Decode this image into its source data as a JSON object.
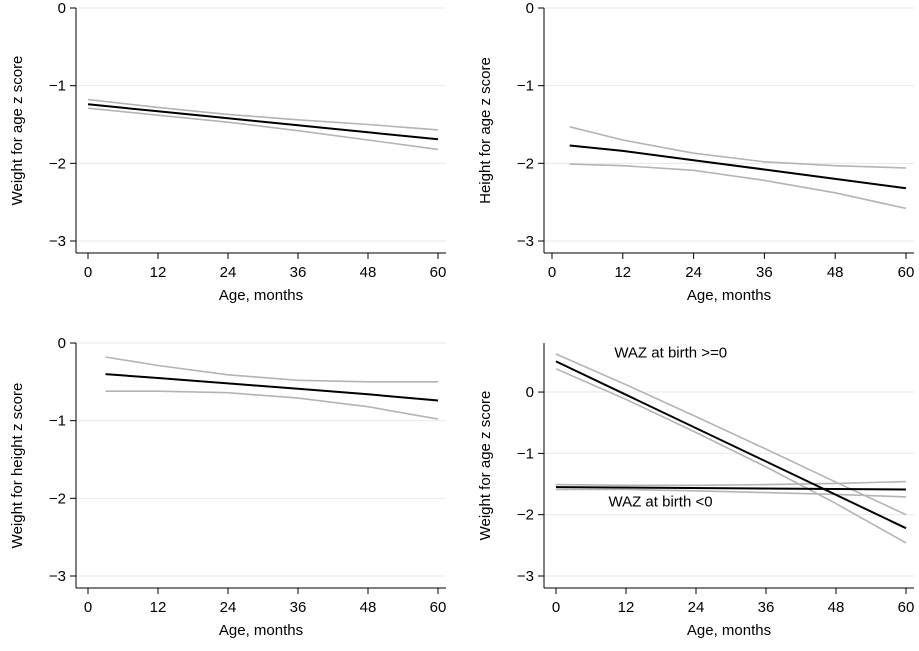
{
  "chart_data": [
    {
      "type": "line",
      "xlabel": "Age, months",
      "ylabel": "Weight for age z score",
      "xlim": [
        0,
        60
      ],
      "ylim": [
        -3,
        0
      ],
      "xticks": [
        0,
        12,
        24,
        36,
        48,
        60
      ],
      "yticks": [
        -3,
        -2,
        -1,
        0
      ],
      "ytick_labels": [
        "−3",
        "−2",
        "−1",
        "0"
      ],
      "grid": true,
      "series": [
        {
          "role": "estimate",
          "color": "#000000",
          "x": [
            0,
            12,
            24,
            36,
            48,
            60
          ],
          "y": [
            -1.24,
            -1.33,
            -1.42,
            -1.51,
            -1.6,
            -1.69
          ]
        },
        {
          "role": "ci-upper",
          "color": "#b4b4b4",
          "x": [
            0,
            12,
            24,
            36,
            48,
            60
          ],
          "y": [
            -1.18,
            -1.28,
            -1.37,
            -1.44,
            -1.5,
            -1.57
          ]
        },
        {
          "role": "ci-lower",
          "color": "#b4b4b4",
          "x": [
            0,
            12,
            24,
            36,
            48,
            60
          ],
          "y": [
            -1.29,
            -1.38,
            -1.47,
            -1.58,
            -1.7,
            -1.82
          ]
        }
      ],
      "annotations": []
    },
    {
      "type": "line",
      "xlabel": "Age, months",
      "ylabel": "Height for age z score",
      "xlim": [
        0,
        60
      ],
      "ylim": [
        -3,
        0
      ],
      "xticks": [
        0,
        12,
        24,
        36,
        48,
        60
      ],
      "yticks": [
        -3,
        -2,
        -1,
        0
      ],
      "ytick_labels": [
        "−3",
        "−2",
        "−1",
        "0"
      ],
      "grid": true,
      "series": [
        {
          "role": "estimate",
          "color": "#000000",
          "x": [
            3,
            12,
            24,
            36,
            48,
            60
          ],
          "y": [
            -1.77,
            -1.84,
            -1.96,
            -2.08,
            -2.2,
            -2.32
          ]
        },
        {
          "role": "ci-upper",
          "color": "#b4b4b4",
          "x": [
            3,
            12,
            24,
            36,
            48,
            60
          ],
          "y": [
            -1.53,
            -1.7,
            -1.87,
            -1.98,
            -2.03,
            -2.06
          ]
        },
        {
          "role": "ci-lower",
          "color": "#b4b4b4",
          "x": [
            3,
            12,
            24,
            36,
            48,
            60
          ],
          "y": [
            -2.01,
            -2.03,
            -2.09,
            -2.22,
            -2.38,
            -2.58
          ]
        }
      ],
      "annotations": []
    },
    {
      "type": "line",
      "xlabel": "Age, months",
      "ylabel": "Weight for height z score",
      "xlim": [
        0,
        60
      ],
      "ylim": [
        -3,
        0
      ],
      "xticks": [
        0,
        12,
        24,
        36,
        48,
        60
      ],
      "yticks": [
        -3,
        -2,
        -1,
        0
      ],
      "ytick_labels": [
        "−3",
        "−2",
        "−1",
        "0"
      ],
      "grid": true,
      "series": [
        {
          "role": "estimate",
          "color": "#000000",
          "x": [
            3,
            12,
            24,
            36,
            48,
            60
          ],
          "y": [
            -0.4,
            -0.45,
            -0.52,
            -0.59,
            -0.66,
            -0.74
          ]
        },
        {
          "role": "ci-upper",
          "color": "#b4b4b4",
          "x": [
            3,
            12,
            24,
            36,
            48,
            60
          ],
          "y": [
            -0.18,
            -0.29,
            -0.41,
            -0.48,
            -0.5,
            -0.5
          ]
        },
        {
          "role": "ci-lower",
          "color": "#b4b4b4",
          "x": [
            3,
            12,
            24,
            36,
            48,
            60
          ],
          "y": [
            -0.62,
            -0.62,
            -0.64,
            -0.71,
            -0.82,
            -0.98
          ]
        }
      ],
      "annotations": []
    },
    {
      "type": "line",
      "xlabel": "Age, months",
      "ylabel": "Weight for age z score",
      "xlim": [
        0,
        60
      ],
      "ylim": [
        -3,
        0.8
      ],
      "xticks": [
        0,
        12,
        24,
        36,
        48,
        60
      ],
      "yticks": [
        -3,
        -2,
        -1,
        0
      ],
      "ytick_labels": [
        "−3",
        "−2",
        "−1",
        "0"
      ],
      "grid": true,
      "series": [
        {
          "role": "estimate",
          "group": "WAZ at birth >=0",
          "color": "#000000",
          "x": [
            0,
            60
          ],
          "y": [
            0.5,
            -2.22
          ]
        },
        {
          "role": "ci-upper",
          "group": "WAZ at birth >=0",
          "color": "#b4b4b4",
          "x": [
            0,
            12,
            24,
            36,
            48,
            60
          ],
          "y": [
            0.62,
            0.12,
            -0.4,
            -0.93,
            -1.47,
            -2.0
          ]
        },
        {
          "role": "ci-lower",
          "group": "WAZ at birth >=0",
          "color": "#b4b4b4",
          "x": [
            0,
            12,
            24,
            36,
            48,
            60
          ],
          "y": [
            0.38,
            -0.12,
            -0.66,
            -1.22,
            -1.82,
            -2.46
          ]
        },
        {
          "role": "estimate",
          "group": "WAZ at birth <0",
          "color": "#000000",
          "x": [
            0,
            60
          ],
          "y": [
            -1.55,
            -1.59
          ]
        },
        {
          "role": "ci-upper",
          "group": "WAZ at birth <0",
          "color": "#b4b4b4",
          "x": [
            0,
            12,
            24,
            36,
            48,
            60
          ],
          "y": [
            -1.51,
            -1.52,
            -1.52,
            -1.51,
            -1.49,
            -1.46
          ]
        },
        {
          "role": "ci-lower",
          "group": "WAZ at birth <0",
          "color": "#b4b4b4",
          "x": [
            0,
            12,
            24,
            36,
            48,
            60
          ],
          "y": [
            -1.59,
            -1.59,
            -1.61,
            -1.64,
            -1.67,
            -1.71
          ]
        }
      ],
      "annotations": [
        {
          "text": "WAZ at birth >=0",
          "x": 10,
          "y": 0.5
        },
        {
          "text": "WAZ at birth <0",
          "x": 9,
          "y": -1.93
        }
      ]
    }
  ]
}
